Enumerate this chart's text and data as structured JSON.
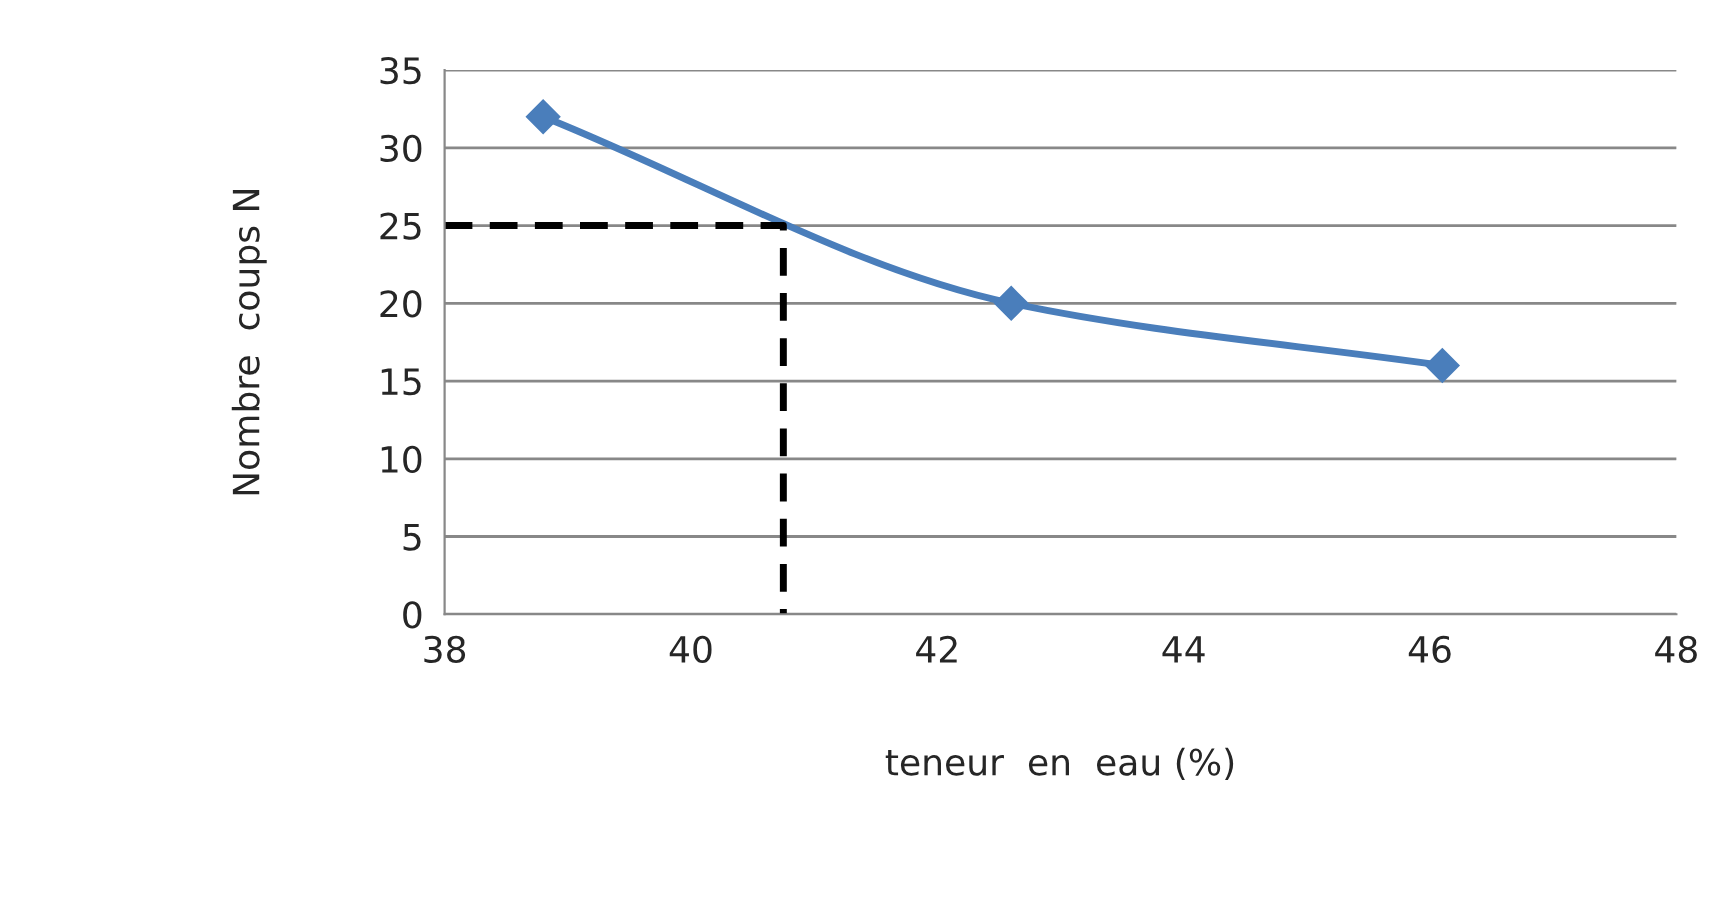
{
  "chart_data": {
    "type": "line",
    "xlabel": "teneur  en  eau (%)",
    "ylabel": "Nombre  coups N",
    "xlim": [
      38,
      48
    ],
    "xticks": [
      38,
      40,
      42,
      44,
      46,
      48
    ],
    "ylim": [
      0,
      35
    ],
    "yticks": [
      0,
      5,
      10,
      15,
      20,
      25,
      30,
      35
    ],
    "grid": "y",
    "series": [
      {
        "x": [
          38.8,
          42.6,
          46.1
        ],
        "values": [
          32,
          20,
          16
        ],
        "color": "#4a7ebb",
        "marker": "diamond",
        "line_style": "solid"
      },
      {
        "x": [
          38,
          40.75,
          40.75
        ],
        "values": [
          25,
          25,
          0
        ],
        "color": "#000000",
        "marker": "none",
        "line_style": "dashed"
      }
    ]
  }
}
